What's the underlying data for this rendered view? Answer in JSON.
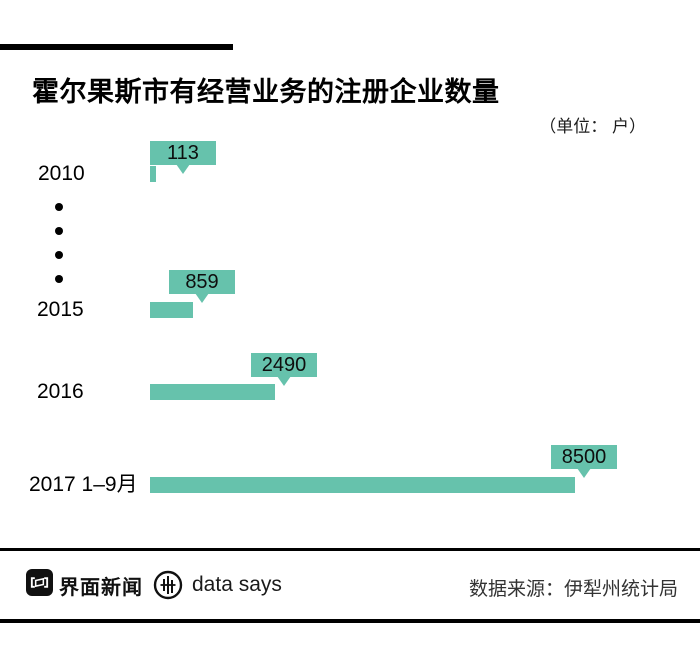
{
  "header": {
    "title": "霍尔果斯市有经营业务的注册企业数量",
    "unit_note": "（单位： 户）"
  },
  "chart_data": {
    "type": "bar",
    "orientation": "horizontal",
    "title": "霍尔果斯市有经营业务的注册企业数量",
    "unit": "户",
    "categories": [
      "2010",
      "2015",
      "2016",
      "2017 1–9月"
    ],
    "values": [
      113,
      859,
      2490,
      8500
    ],
    "data_labels": [
      "113",
      "859",
      "2490",
      "8500"
    ],
    "xlim": [
      0,
      8500
    ],
    "bar_color": "#66c2ac",
    "value_label_style": "teal callout badge with down-pointing tail above each bar end",
    "omitted_years_ellipsis_dots": 4,
    "legend": "none",
    "grid": false
  },
  "footer": {
    "brand_left": "界面新闻",
    "brand_right": "data says",
    "source": "数据来源：伊犁州统计局"
  },
  "colors": {
    "accent_teal": "#66c2ac",
    "rule_black": "#000000",
    "source_gray": "#333333"
  }
}
